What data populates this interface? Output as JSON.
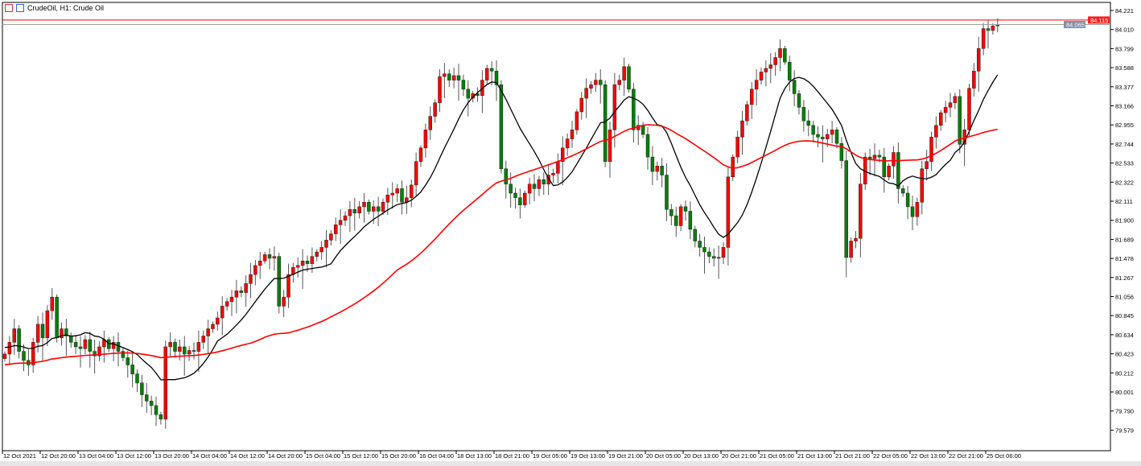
{
  "header": {
    "title": "CrudeOil, H1:  Crude Oil",
    "icons": [
      "chart-list-icon",
      "symbol-icon"
    ]
  },
  "colors": {
    "bull": "#ff0000",
    "bear": "#008000",
    "ma_fast": "#000000",
    "ma_slow": "#ff0000",
    "ask_line": "#ff0000",
    "bid_line": "#a0a0a0"
  },
  "chart_data": {
    "type": "candlestick",
    "symbol": "CrudeOil",
    "timeframe": "H1",
    "ylim": [
      79.5,
      84.3
    ],
    "grid": false,
    "y_ticks": [
      "84.221",
      "84.010",
      "83.799",
      "83.588",
      "83.377",
      "83.166",
      "82.955",
      "82.744",
      "82.533",
      "82.322",
      "82.111",
      "81.900",
      "81.689",
      "81.478",
      "81.267",
      "81.056",
      "80.845",
      "80.634",
      "80.423",
      "80.212",
      "80.001",
      "79.790",
      "79.579"
    ],
    "x_ticks": [
      "12 Oct 2021",
      "12 Oct 20:00",
      "13 Oct 04:00",
      "13 Oct 12:00",
      "13 Oct 20:00",
      "14 Oct 04:00",
      "14 Oct 12:00",
      "14 Oct 20:00",
      "15 Oct 04:00",
      "15 Oct 12:00",
      "15 Oct 20:00",
      "16 Oct 04:00",
      "18 Oct 13:00",
      "18 Oct 21:00",
      "19 Oct 05:00",
      "19 Oct 13:00",
      "19 Oct 21:00",
      "20 Oct 05:00",
      "20 Oct 13:00",
      "20 Oct 21:00",
      "21 Oct 05:00",
      "21 Oct 13:00",
      "21 Oct 21:00",
      "22 Oct 05:00",
      "22 Oct 13:00",
      "22 Oct 21:00",
      "25 Oct 06:00"
    ],
    "ask_price": "84.115",
    "bid_price": "84.065",
    "close": [
      80.42,
      80.55,
      80.7,
      80.45,
      80.35,
      80.3,
      80.55,
      80.75,
      80.6,
      80.9,
      81.05,
      80.6,
      80.7,
      80.62,
      80.55,
      80.5,
      80.48,
      80.58,
      80.45,
      80.4,
      80.5,
      80.58,
      80.48,
      80.55,
      80.45,
      80.38,
      80.3,
      80.2,
      80.1,
      79.97,
      79.9,
      79.85,
      79.75,
      79.7,
      80.5,
      80.55,
      80.45,
      80.5,
      80.42,
      80.46,
      80.45,
      80.55,
      80.62,
      80.7,
      80.75,
      80.82,
      80.95,
      81.0,
      81.05,
      81.12,
      81.1,
      81.2,
      81.3,
      81.4,
      81.45,
      81.52,
      81.48,
      81.5,
      80.95,
      81.05,
      81.3,
      81.38,
      81.4,
      81.45,
      81.42,
      81.5,
      81.55,
      81.6,
      81.68,
      81.75,
      81.85,
      81.9,
      81.95,
      82.02,
      81.98,
      82.05,
      82.1,
      82.0,
      82.05,
      82.0,
      82.1,
      82.18,
      82.2,
      82.25,
      82.1,
      82.15,
      82.29,
      82.55,
      82.7,
      82.9,
      83.05,
      83.2,
      83.49,
      83.52,
      83.45,
      83.5,
      83.45,
      83.35,
      83.25,
      83.3,
      83.28,
      83.45,
      83.58,
      83.55,
      83.4,
      82.47,
      82.3,
      82.2,
      82.15,
      82.07,
      82.2,
      82.3,
      82.25,
      82.35,
      82.3,
      82.4,
      82.42,
      82.55,
      82.7,
      82.8,
      82.9,
      83.1,
      83.25,
      83.36,
      83.4,
      83.45,
      83.4,
      82.55,
      82.9,
      83.4,
      83.45,
      83.6,
      83.35,
      82.9,
      82.95,
      82.85,
      82.6,
      82.44,
      82.5,
      82.4,
      82.02,
      81.95,
      81.84,
      82.05,
      82.0,
      81.8,
      81.67,
      81.6,
      81.55,
      81.5,
      81.48,
      81.49,
      81.6,
      82.38,
      82.6,
      82.82,
      83.0,
      83.18,
      83.35,
      83.45,
      83.54,
      83.58,
      83.62,
      83.7,
      83.8,
      83.65,
      83.45,
      83.3,
      83.15,
      83.0,
      82.95,
      82.85,
      82.82,
      82.8,
      82.85,
      82.9,
      82.75,
      82.56,
      81.49,
      81.67,
      81.7,
      82.3,
      82.6,
      82.58,
      82.62,
      82.6,
      82.38,
      82.5,
      82.65,
      82.25,
      82.2,
      82.05,
      81.94,
      82.1,
      82.47,
      82.55,
      82.82,
      82.95,
      83.09,
      83.15,
      83.2,
      83.27,
      82.74,
      82.9,
      83.36,
      83.55,
      83.8,
      84.02,
      84.0,
      84.05,
      84.065
    ]
  }
}
